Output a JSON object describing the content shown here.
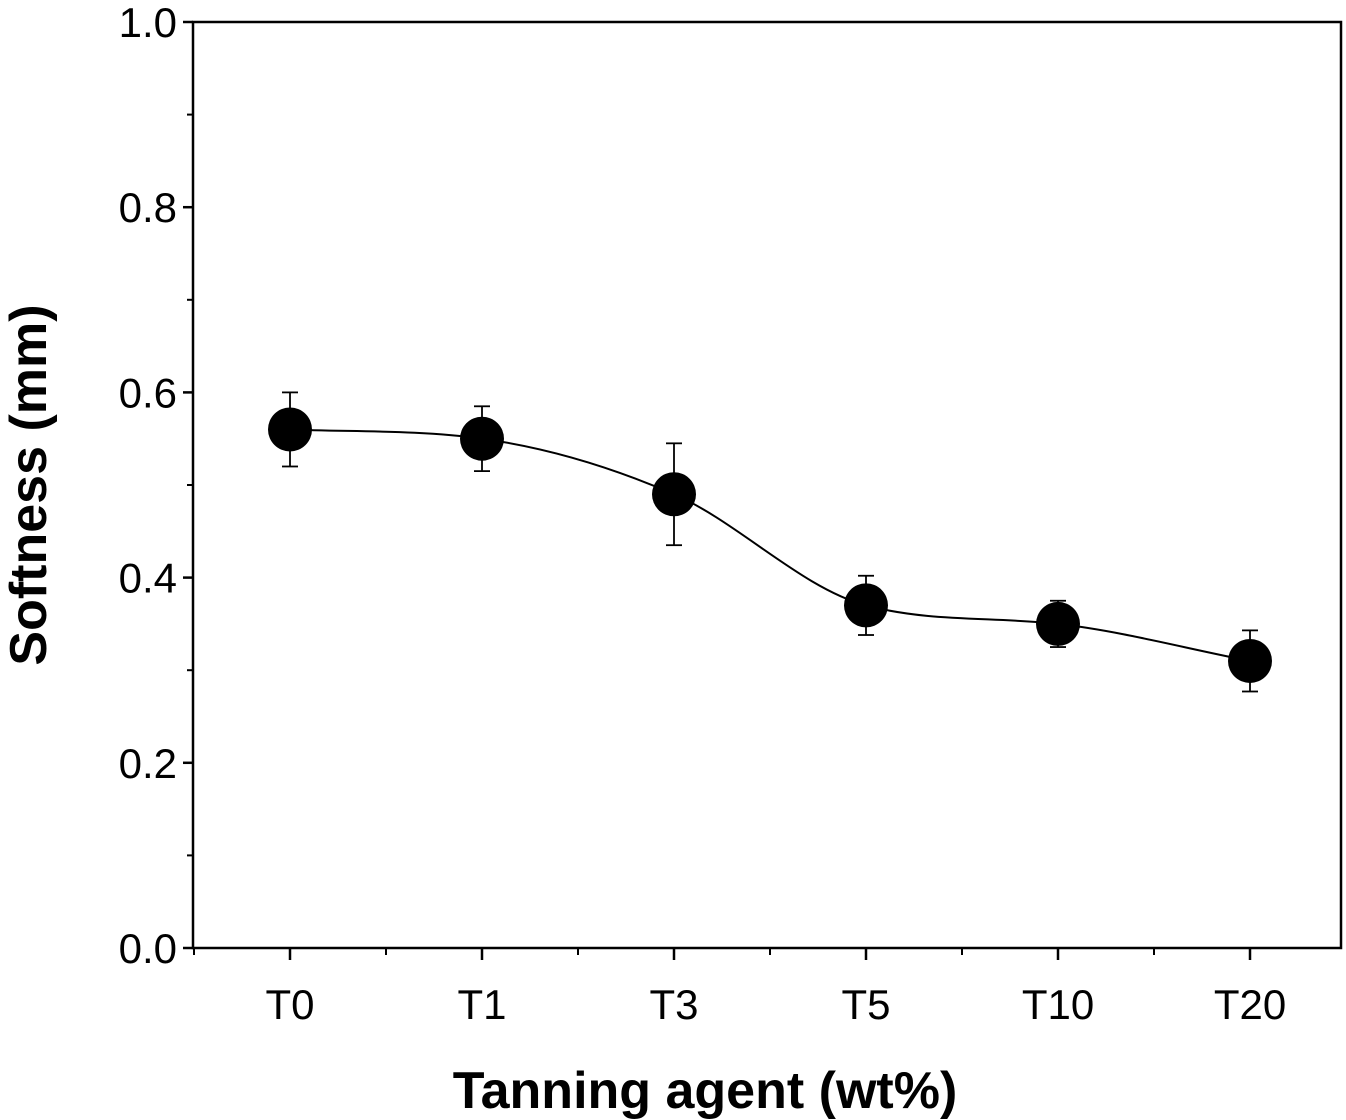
{
  "chart_data": {
    "type": "scatter",
    "xlabel": "Tanning agent (wt%)",
    "ylabel": "Softness (mm)",
    "categories": [
      "T0",
      "T1",
      "T3",
      "T5",
      "T10",
      "T20"
    ],
    "y_ticks": [
      "0.0",
      "0.2",
      "0.4",
      "0.6",
      "0.8",
      "1.0"
    ],
    "ylim": [
      0,
      1.0
    ],
    "y_minor_step": 0.1,
    "grid": false,
    "legend": "none",
    "series": [
      {
        "values": [
          0.56,
          0.55,
          0.49,
          0.37,
          0.35,
          0.31
        ],
        "errors": [
          0.04,
          0.035,
          0.055,
          0.032,
          0.025,
          0.033
        ],
        "marker": "filled-circle",
        "color": "#000000",
        "smooth_line": true
      }
    ]
  }
}
